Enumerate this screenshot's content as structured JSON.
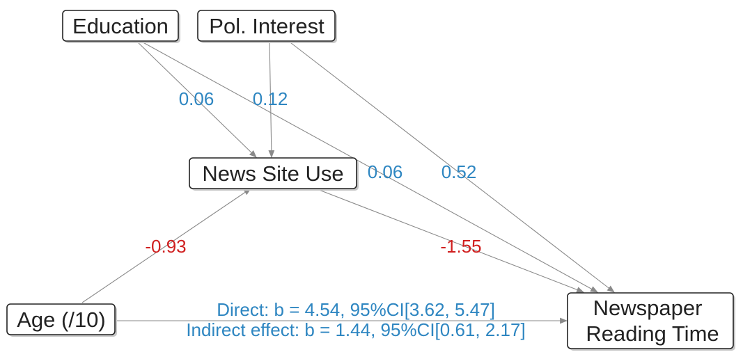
{
  "colors": {
    "positive": "#2e86c1",
    "negative": "#d01f1f",
    "edge": "#8a8a8a",
    "node_border": "#222222"
  },
  "nodes": {
    "education": "Education",
    "pol_interest": "Pol. Interest",
    "news_site_use": "News Site Use",
    "age": "Age (/10)",
    "newspaper_line1": "Newspaper",
    "newspaper_line2": "Reading Time"
  },
  "coefficients": {
    "education_to_news_site": "0.06",
    "pol_interest_to_news_site": "0.12",
    "education_to_newspaper": "0.06",
    "pol_interest_to_newspaper": "0.52",
    "age_to_news_site": "-0.93",
    "news_site_to_newspaper": "-1.55"
  },
  "effects": {
    "direct": "Direct: b = 4.54, 95%CI[3.62, 5.47]",
    "indirect": "Indirect effect: b = 1.44, 95%CI[0.61, 2.17]"
  }
}
